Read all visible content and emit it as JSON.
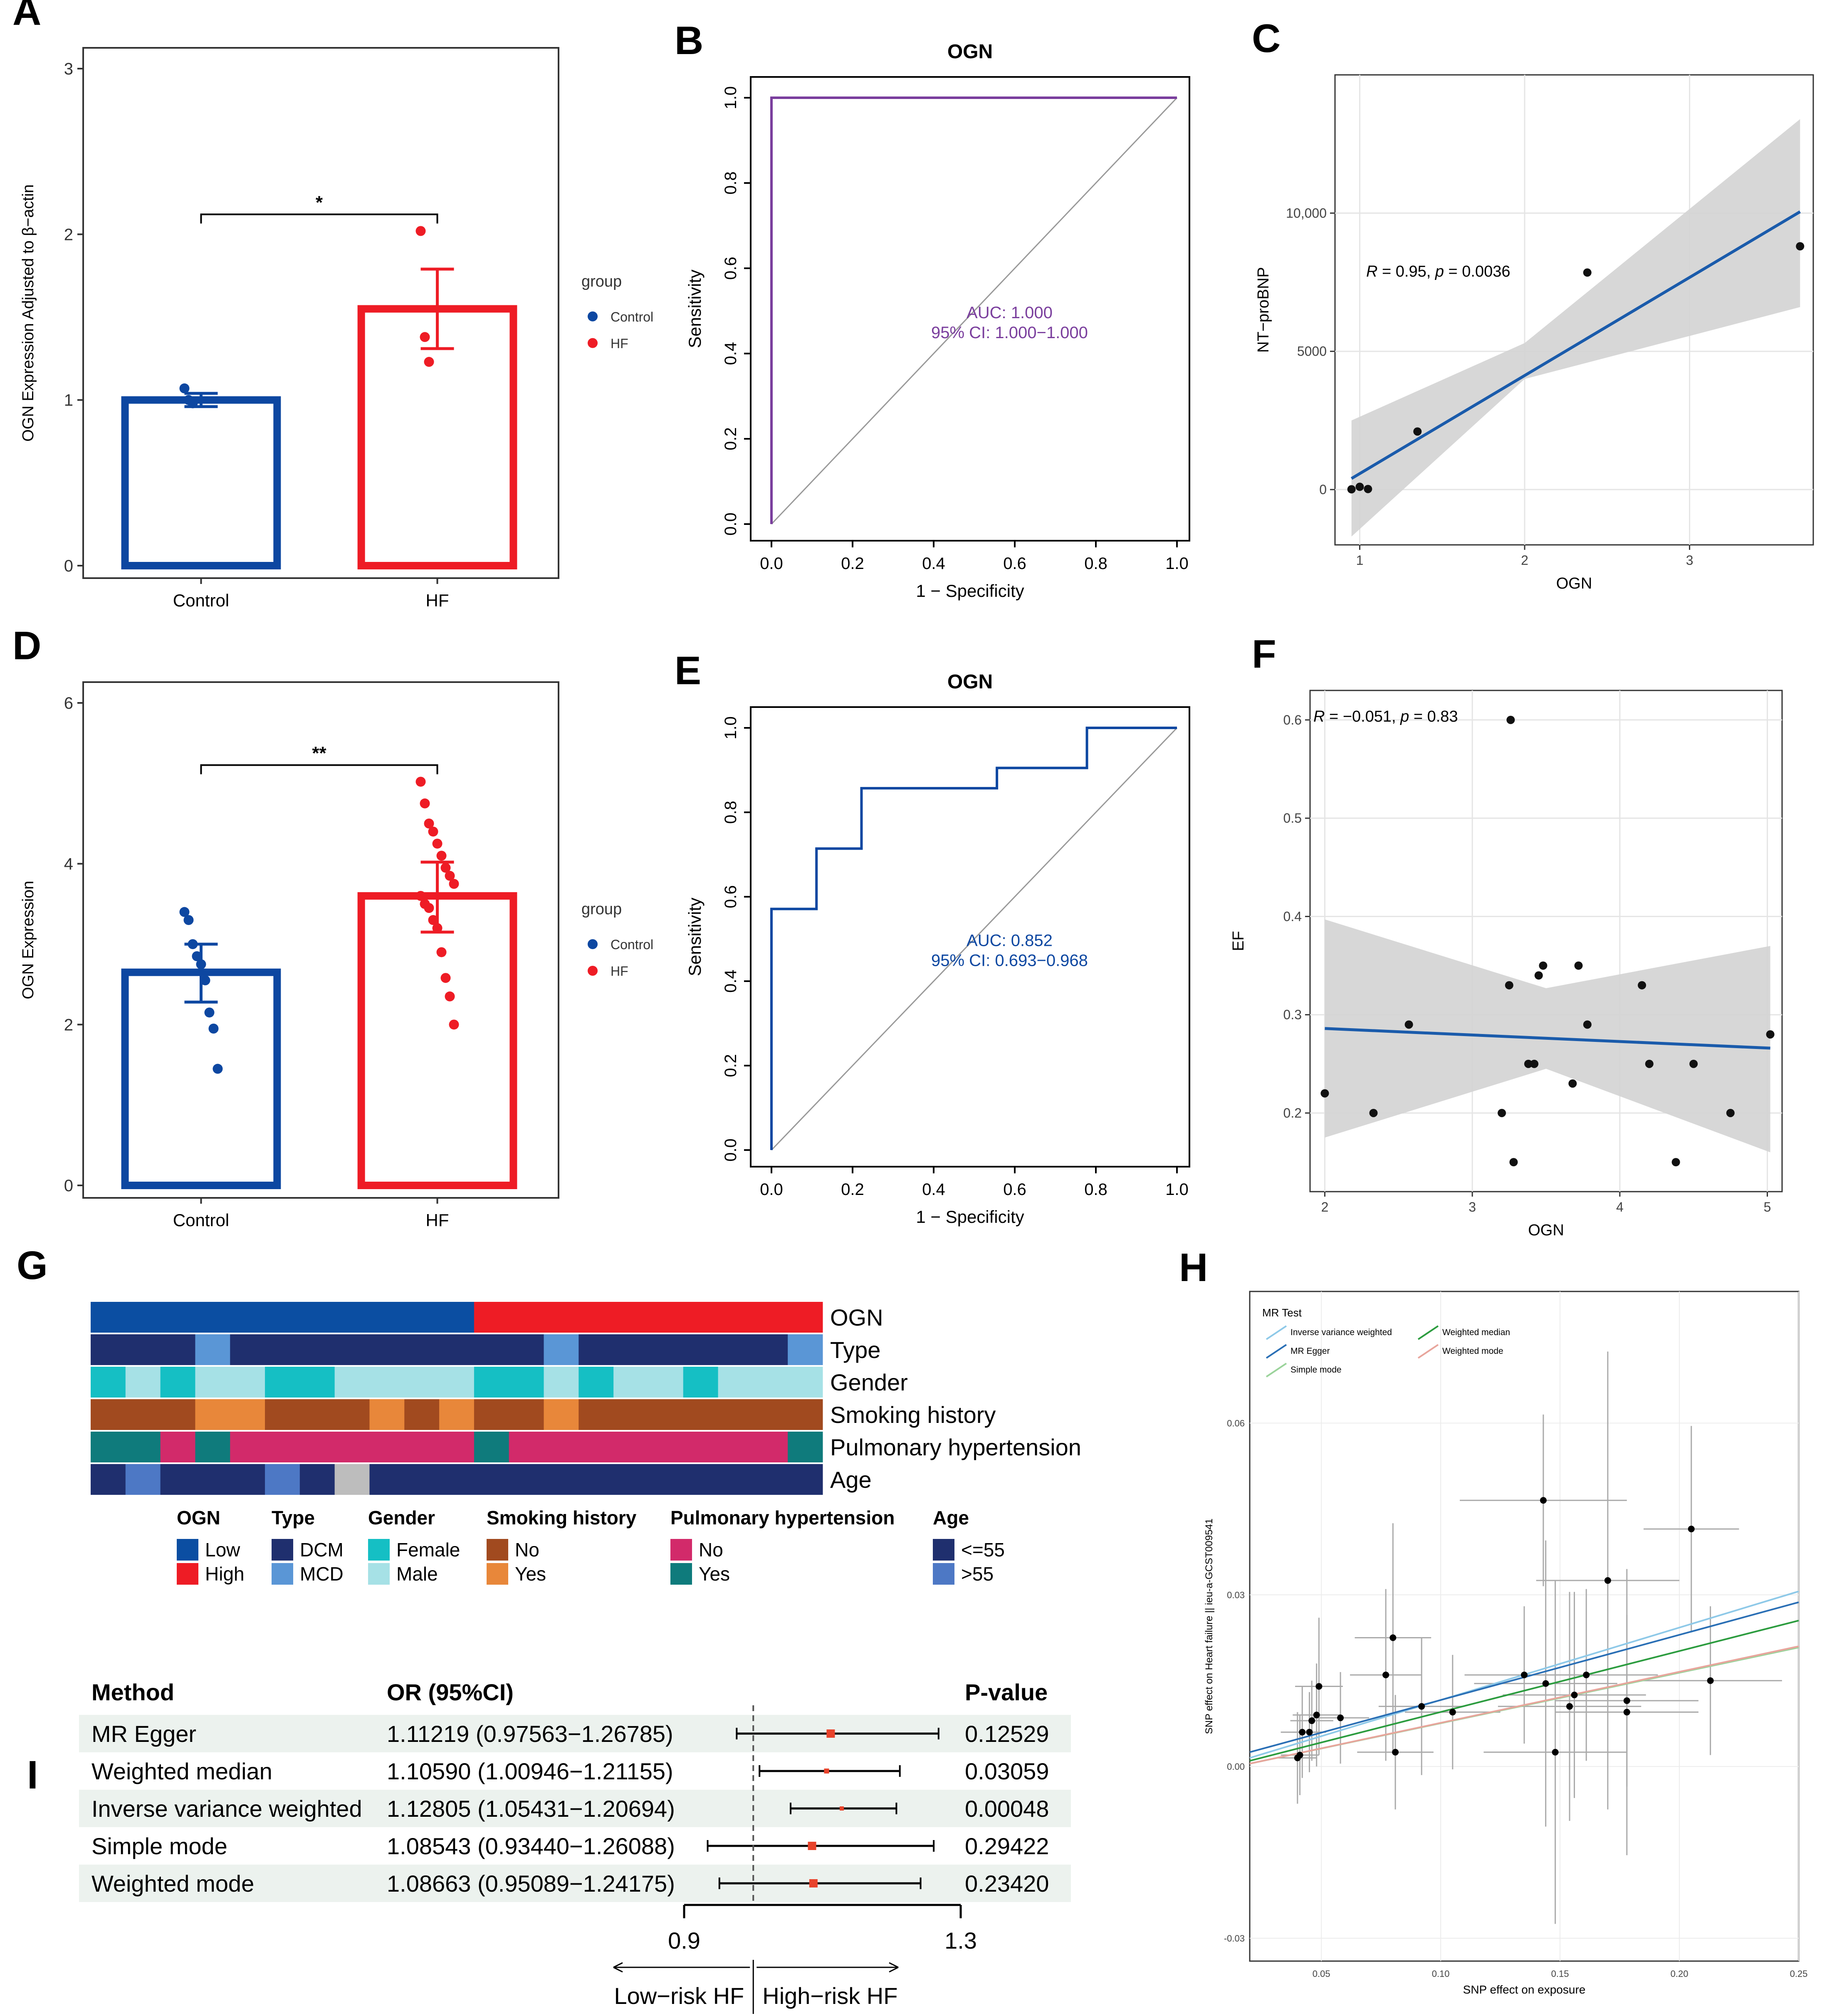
{
  "panels": {
    "A": {
      "letter": "A",
      "ylabel": "OGN Expression Adjusted to β−actin",
      "yticks": [
        "0",
        "1",
        "2",
        "3"
      ],
      "categories": [
        "Control",
        "HF"
      ],
      "significance": "*",
      "legend_title": "group",
      "legend_items": [
        "Control",
        "HF"
      ]
    },
    "B": {
      "letter": "B",
      "title": "OGN",
      "xlabel": "1 − Specificity",
      "ylabel": "Sensitivity",
      "ticks": [
        "0.0",
        "0.2",
        "0.4",
        "0.6",
        "0.8",
        "1.0"
      ],
      "auc": "AUC: 1.000",
      "ci": "95% CI: 1.000−1.000"
    },
    "C": {
      "letter": "C",
      "xlabel": "OGN",
      "ylabel": "NT−proBNP",
      "xticks": [
        "1",
        "2",
        "3"
      ],
      "yticks": [
        "0",
        "5000",
        "10,000"
      ],
      "stat_r": "R",
      "stat_rest": " = 0.95, ",
      "stat_p": "p",
      "stat_pval": " = 0.0036"
    },
    "D": {
      "letter": "D",
      "ylabel": "OGN Expression",
      "yticks": [
        "0",
        "2",
        "4",
        "6"
      ],
      "categories": [
        "Control",
        "HF"
      ],
      "significance": "**",
      "legend_title": "group",
      "legend_items": [
        "Control",
        "HF"
      ]
    },
    "E": {
      "letter": "E",
      "title": "OGN",
      "xlabel": "1 − Specificity",
      "ylabel": "Sensitivity",
      "ticks": [
        "0.0",
        "0.2",
        "0.4",
        "0.6",
        "0.8",
        "1.0"
      ],
      "auc": "AUC: 0.852",
      "ci": "95% CI: 0.693−0.968"
    },
    "F": {
      "letter": "F",
      "xlabel": "OGN",
      "ylabel": "EF",
      "xticks": [
        "2",
        "3",
        "4",
        "5"
      ],
      "yticks": [
        "0.2",
        "0.3",
        "0.4",
        "0.5",
        "0.6"
      ],
      "stat_r": "R",
      "stat_rest": " = −0.051, ",
      "stat_p": "p",
      "stat_pval": " = 0.83"
    },
    "G": {
      "letter": "G",
      "row_labels": [
        "OGN",
        "Type",
        "Gender",
        "Smoking history",
        "Pulmonary hypertension",
        "Age"
      ],
      "legend": [
        {
          "title": "OGN",
          "items": [
            "Low",
            "High"
          ]
        },
        {
          "title": "Type",
          "items": [
            "DCM",
            "MCD"
          ]
        },
        {
          "title": "Gender",
          "items": [
            "Female",
            "Male"
          ]
        },
        {
          "title": "Smoking history",
          "items": [
            "No",
            "Yes"
          ]
        },
        {
          "title": "Pulmonary hypertension",
          "items": [
            "No",
            "Yes"
          ]
        },
        {
          "title": "Age",
          "items": [
            "<=55",
            ">55"
          ]
        }
      ]
    },
    "H": {
      "letter": "H",
      "xlabel": "SNP effect on exposure",
      "ylabel": "SNP effect on Heart failure || ieu-a-GCST009541",
      "legend_title": "MR Test",
      "legend_items": [
        "Inverse variance weighted",
        "Weighted median",
        "MR Egger",
        "Weighted mode",
        "Simple mode"
      ],
      "xticks": [
        "0.05",
        "0.10",
        "0.15",
        "0.20",
        "0.25"
      ],
      "yticks": [
        "-0.03",
        "0.00",
        "0.03",
        "0.06"
      ]
    },
    "I": {
      "letter": "I",
      "headers": [
        "Method",
        "OR (95%CI)",
        "P-value"
      ],
      "axis_ticks": [
        "0.9",
        "1.3"
      ],
      "low_label": "Low−risk HF",
      "high_label": "High−risk HF"
    }
  },
  "colors": {
    "blue": "#0d47a1",
    "red": "#ee1c25",
    "roc_purple": "#7a3e9d",
    "roc_blue": "#0d47a1",
    "ci_band": "#d3d3d3",
    "reg_line": "#1a5bab",
    "forest_box": "#e8432b",
    "row_band": "#ecf2ee"
  },
  "chart_data": [
    {
      "type": "bar",
      "panel": "A",
      "categories": [
        "Control",
        "HF"
      ],
      "values": [
        1.0,
        1.55
      ],
      "error": [
        [
          0.96,
          1.04
        ],
        [
          1.31,
          1.79
        ]
      ],
      "points": [
        [
          1.07,
          1.0,
          0.98
        ],
        [
          2.02,
          1.38,
          1.23
        ]
      ],
      "ylim": [
        0,
        3
      ],
      "ylabel": "OGN Expression Adjusted to β−actin"
    },
    {
      "type": "line",
      "panel": "B",
      "title": "OGN",
      "series": [
        {
          "name": "ROC",
          "x": [
            0,
            0,
            1
          ],
          "y": [
            0,
            1,
            1
          ]
        }
      ],
      "xlim": [
        0,
        1
      ],
      "ylim": [
        0,
        1
      ],
      "xlabel": "1 − Specificity",
      "ylabel": "Sensitivity"
    },
    {
      "type": "scatter",
      "panel": "C",
      "x": [
        0.95,
        1.0,
        1.05,
        1.35,
        2.38,
        3.67
      ],
      "y": [
        10,
        100,
        20,
        2100,
        7850,
        8800
      ],
      "fit": {
        "x": [
          0.95,
          3.67
        ],
        "y": [
          400,
          10050
        ]
      },
      "band": {
        "x": [
          0.95,
          2.0,
          3.67
        ],
        "lower": [
          -1700,
          4000,
          6600
        ],
        "upper": [
          2500,
          5300,
          13400
        ]
      },
      "xlim": [
        0.85,
        3.75
      ],
      "ylim": [
        -2000,
        15000
      ],
      "xlabel": "OGN",
      "ylabel": "NT−proBNP"
    },
    {
      "type": "bar",
      "panel": "D",
      "categories": [
        "Control",
        "HF"
      ],
      "values": [
        2.65,
        3.6
      ],
      "error": [
        [
          2.28,
          3.0
        ],
        [
          3.15,
          4.02
        ]
      ],
      "points": [
        [
          3.4,
          3.3,
          3.0,
          2.85,
          2.75,
          2.55,
          2.15,
          1.95,
          1.45
        ],
        [
          5.02,
          4.75,
          4.5,
          4.4,
          4.25,
          4.1,
          3.95,
          3.85,
          3.75,
          3.6,
          3.5,
          3.45,
          3.3,
          3.2,
          2.9,
          2.58,
          2.35,
          2.0
        ]
      ],
      "ylim": [
        0,
        6
      ],
      "ylabel": "OGN Expression"
    },
    {
      "type": "line",
      "panel": "E",
      "title": "OGN",
      "series": [
        {
          "name": "ROC",
          "x": [
            0,
            0,
            0.111,
            0.111,
            0.222,
            0.222,
            0.556,
            0.556,
            0.778,
            0.778,
            1.0
          ],
          "y": [
            0,
            0.571,
            0.571,
            0.714,
            0.714,
            0.857,
            0.857,
            0.905,
            0.905,
            1.0,
            1.0
          ]
        }
      ],
      "xlim": [
        0,
        1
      ],
      "ylim": [
        0,
        1
      ],
      "xlabel": "1 − Specificity",
      "ylabel": "Sensitivity"
    },
    {
      "type": "scatter",
      "panel": "F",
      "x": [
        2.0,
        2.33,
        2.57,
        3.2,
        3.25,
        3.26,
        3.28,
        3.38,
        3.42,
        3.45,
        3.48,
        3.68,
        3.72,
        3.78,
        4.15,
        4.2,
        4.38,
        4.5,
        4.75,
        5.02
      ],
      "y": [
        0.22,
        0.2,
        0.29,
        0.2,
        0.33,
        0.6,
        0.15,
        0.25,
        0.25,
        0.34,
        0.35,
        0.23,
        0.35,
        0.29,
        0.33,
        0.25,
        0.15,
        0.25,
        0.2,
        0.28
      ],
      "fit": {
        "x": [
          2.0,
          5.02
        ],
        "y": [
          0.286,
          0.266
        ]
      },
      "band": {
        "x": [
          2.0,
          3.5,
          5.02
        ],
        "lower": [
          0.175,
          0.245,
          0.16
        ],
        "upper": [
          0.397,
          0.327,
          0.37
        ]
      },
      "xlim": [
        1.9,
        5.1
      ],
      "ylim": [
        0.12,
        0.63
      ],
      "xlabel": "OGN",
      "ylabel": "EF"
    },
    {
      "type": "heatmap",
      "panel": "G",
      "rows": [
        "OGN",
        "Type",
        "Gender",
        "Smoking history",
        "Pulmonary hypertension",
        "Age"
      ],
      "n_samples": 21,
      "values": [
        [
          "Low",
          "Low",
          "Low",
          "Low",
          "Low",
          "Low",
          "Low",
          "Low",
          "Low",
          "Low",
          "Low",
          "High",
          "High",
          "High",
          "High",
          "High",
          "High",
          "High",
          "High",
          "High",
          "High"
        ],
        [
          "DCM",
          "DCM",
          "DCM",
          "MCD",
          "DCM",
          "DCM",
          "DCM",
          "DCM",
          "DCM",
          "DCM",
          "DCM",
          "DCM",
          "DCM",
          "MCD",
          "DCM",
          "DCM",
          "DCM",
          "DCM",
          "DCM",
          "DCM",
          "MCD"
        ],
        [
          "Female",
          "Male",
          "Female",
          "Male",
          "Male",
          "Female",
          "Female",
          "Male",
          "Male",
          "Male",
          "Male",
          "Female",
          "Female",
          "Male",
          "Female",
          "Male",
          "Male",
          "Female",
          "Male",
          "Male",
          "Male"
        ],
        [
          "No",
          "No",
          "No",
          "Yes",
          "Yes",
          "No",
          "No",
          "No",
          "Yes",
          "No",
          "Yes",
          "No",
          "No",
          "Yes",
          "No",
          "No",
          "No",
          "No",
          "No",
          "No",
          "No"
        ],
        [
          "Yes",
          "Yes",
          "No",
          "Yes",
          "No",
          "No",
          "No",
          "No",
          "No",
          "No",
          "No",
          "Yes",
          "No",
          "No",
          "No",
          "No",
          "No",
          "No",
          "No",
          "No",
          "Yes"
        ],
        [
          "<=55",
          ">55",
          "<=55",
          "<=55",
          "<=55",
          ">55",
          "<=55",
          "NA",
          "<=55",
          "<=55",
          "<=55",
          "<=55",
          "<=55",
          "<=55",
          "<=55",
          "<=55",
          "<=55",
          "<=55",
          "<=55",
          "<=55",
          "<=55"
        ]
      ]
    },
    {
      "type": "scatter",
      "panel": "H",
      "xlabel": "SNP effect on exposure",
      "ylabel": "SNP effect on Heart failure || ieu-a-GCST009541",
      "points": [
        {
          "x": 0.04,
          "y": 0.0015,
          "xse": 0.008,
          "yse": 0.008
        },
        {
          "x": 0.041,
          "y": 0.002,
          "xse": 0.008,
          "yse": 0.007
        },
        {
          "x": 0.042,
          "y": 0.006,
          "xse": 0.009,
          "yse": 0.008
        },
        {
          "x": 0.045,
          "y": 0.006,
          "xse": 0.007,
          "yse": 0.007
        },
        {
          "x": 0.046,
          "y": 0.008,
          "xse": 0.009,
          "yse": 0.007
        },
        {
          "x": 0.048,
          "y": 0.009,
          "xse": 0.01,
          "yse": 0.009
        },
        {
          "x": 0.049,
          "y": 0.014,
          "xse": 0.01,
          "yse": 0.012
        },
        {
          "x": 0.058,
          "y": 0.0085,
          "xse": 0.012,
          "yse": 0.008
        },
        {
          "x": 0.077,
          "y": 0.016,
          "xse": 0.015,
          "yse": 0.015
        },
        {
          "x": 0.08,
          "y": 0.0225,
          "xse": 0.016,
          "yse": 0.02
        },
        {
          "x": 0.081,
          "y": 0.0025,
          "xse": 0.016,
          "yse": 0.01
        },
        {
          "x": 0.092,
          "y": 0.0105,
          "xse": 0.018,
          "yse": 0.012
        },
        {
          "x": 0.105,
          "y": 0.0095,
          "xse": 0.02,
          "yse": 0.01
        },
        {
          "x": 0.135,
          "y": 0.016,
          "xse": 0.025,
          "yse": 0.012
        },
        {
          "x": 0.143,
          "y": 0.0465,
          "xse": 0.035,
          "yse": 0.015
        },
        {
          "x": 0.144,
          "y": 0.0145,
          "xse": 0.03,
          "yse": 0.025
        },
        {
          "x": 0.148,
          "y": 0.0025,
          "xse": 0.03,
          "yse": 0.03
        },
        {
          "x": 0.154,
          "y": 0.0105,
          "xse": 0.03,
          "yse": 0.02
        },
        {
          "x": 0.156,
          "y": 0.0125,
          "xse": 0.03,
          "yse": 0.018
        },
        {
          "x": 0.161,
          "y": 0.016,
          "xse": 0.03,
          "yse": 0.015
        },
        {
          "x": 0.17,
          "y": 0.0325,
          "xse": 0.03,
          "yse": 0.04
        },
        {
          "x": 0.178,
          "y": 0.0115,
          "xse": 0.03,
          "yse": 0.015
        },
        {
          "x": 0.178,
          "y": 0.0095,
          "xse": 0.03,
          "yse": 0.025
        },
        {
          "x": 0.205,
          "y": 0.0415,
          "xse": 0.02,
          "yse": 0.018
        },
        {
          "x": 0.213,
          "y": 0.015,
          "xse": 0.03,
          "yse": 0.013
        }
      ],
      "lines": [
        {
          "name": "Inverse variance weighted",
          "color": "#8ec9e8",
          "y_at": [
            0.0015,
            0.0306
          ]
        },
        {
          "name": "MR Egger",
          "color": "#2a6fb5",
          "y_at": [
            0.0025,
            0.0287
          ]
        },
        {
          "name": "Simple mode",
          "color": "#9bd39b",
          "y_at": [
            0.0005,
            0.0208
          ]
        },
        {
          "name": "Weighted median",
          "color": "#2c9c3f",
          "y_at": [
            0.001,
            0.0255
          ]
        },
        {
          "name": "Weighted mode",
          "color": "#e8a59c",
          "y_at": [
            0.0005,
            0.021
          ]
        }
      ],
      "x_at": [
        0.02,
        0.25
      ],
      "xlim": [
        0.02,
        0.25
      ],
      "ylim": [
        -0.034,
        0.083
      ]
    },
    {
      "type": "table",
      "panel": "I",
      "rows": [
        {
          "method": "MR Egger",
          "or": "1.11219 (0.97563−1.26785)",
          "p": "0.12529",
          "est": 1.112,
          "lo": 0.976,
          "hi": 1.268
        },
        {
          "method": "Weighted median",
          "or": "1.10590 (1.00946−1.21155)",
          "p": "0.03059",
          "est": 1.106,
          "lo": 1.009,
          "hi": 1.212
        },
        {
          "method": "Inverse variance weighted",
          "or": "1.12805 (1.05431−1.20694)",
          "p": "0.00048",
          "est": 1.128,
          "lo": 1.054,
          "hi": 1.207
        },
        {
          "method": "Simple mode",
          "or": "1.08543 (0.93440−1.26088)",
          "p": "0.29422",
          "est": 1.085,
          "lo": 0.934,
          "hi": 1.261
        },
        {
          "method": "Weighted mode",
          "or": "1.08663 (0.95089−1.24175)",
          "p": "0.23420",
          "est": 1.087,
          "lo": 0.951,
          "hi": 1.242
        }
      ],
      "null_value": 1.0,
      "xlim": [
        0.9,
        1.3
      ]
    }
  ]
}
